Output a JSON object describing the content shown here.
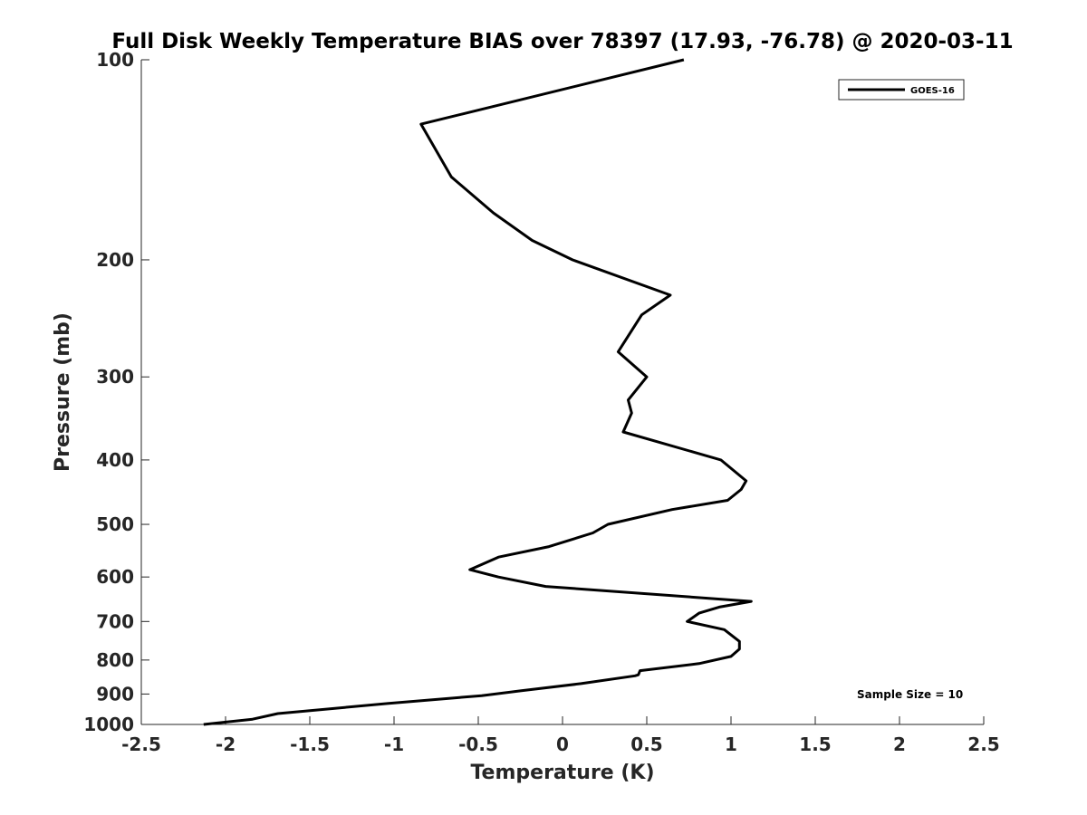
{
  "chart_data": {
    "type": "line",
    "title": "Full Disk Weekly Temperature BIAS over 78397 (17.93, -76.78) @ 2020-03-11",
    "xlabel": "Temperature (K)",
    "ylabel": "Pressure (mb)",
    "xlim": [
      -2.5,
      2.5
    ],
    "ylim": [
      1000,
      100
    ],
    "yscale": "log",
    "y_reversed": true,
    "xticks": [
      -2.5,
      -2,
      -1.5,
      -1,
      -0.5,
      0,
      0.5,
      1,
      1.5,
      2,
      2.5
    ],
    "xtick_labels": [
      "-2.5",
      "-2",
      "-1.5",
      "-1",
      "-0.5",
      "0",
      "0.5",
      "1",
      "1.5",
      "2",
      "2.5"
    ],
    "yticks": [
      100,
      200,
      300,
      400,
      500,
      600,
      700,
      800,
      900,
      1000
    ],
    "ytick_labels": [
      "100",
      "200",
      "300",
      "400",
      "500",
      "600",
      "700",
      "800",
      "900",
      "1000"
    ],
    "grid": false,
    "legend_position": "top-right",
    "annotation": "Sample Size = 10",
    "series": [
      {
        "name": "GOES-16",
        "color": "#000000",
        "points": [
          [
            0.72,
            100
          ],
          [
            -0.84,
            125
          ],
          [
            -0.66,
            150
          ],
          [
            -0.41,
            170
          ],
          [
            -0.18,
            187
          ],
          [
            0.06,
            200
          ],
          [
            0.64,
            226
          ],
          [
            0.47,
            242
          ],
          [
            0.33,
            275
          ],
          [
            0.5,
            300
          ],
          [
            0.39,
            325
          ],
          [
            0.41,
            340
          ],
          [
            0.36,
            363
          ],
          [
            0.94,
            400
          ],
          [
            1.09,
            430
          ],
          [
            1.06,
            443
          ],
          [
            0.98,
            460
          ],
          [
            0.65,
            475
          ],
          [
            0.27,
            500
          ],
          [
            0.18,
            515
          ],
          [
            -0.08,
            540
          ],
          [
            -0.38,
            560
          ],
          [
            -0.55,
            585
          ],
          [
            -0.38,
            600
          ],
          [
            -0.1,
            620
          ],
          [
            1.12,
            653
          ],
          [
            0.93,
            666
          ],
          [
            0.81,
            680
          ],
          [
            0.74,
            700
          ],
          [
            0.96,
            720
          ],
          [
            1.05,
            750
          ],
          [
            1.05,
            770
          ],
          [
            1.0,
            790
          ],
          [
            0.81,
            810
          ],
          [
            0.46,
            830
          ],
          [
            0.45,
            842
          ],
          [
            0.43,
            845
          ],
          [
            0.11,
            868
          ],
          [
            -0.25,
            890
          ],
          [
            -0.48,
            905
          ],
          [
            -1.04,
            930
          ],
          [
            -1.69,
            963
          ],
          [
            -1.84,
            982
          ],
          [
            -2.13,
            1000
          ]
        ]
      }
    ]
  }
}
